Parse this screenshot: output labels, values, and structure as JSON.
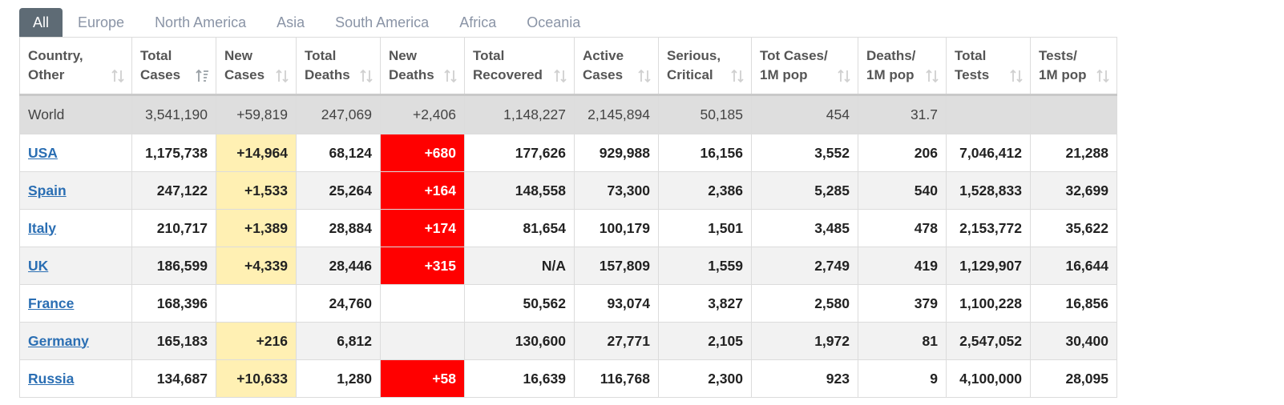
{
  "tabs": [
    "All",
    "Europe",
    "North America",
    "Asia",
    "South America",
    "Africa",
    "Oceania"
  ],
  "active_tab": "All",
  "colors": {
    "tab_active_bg": "#5e6b75",
    "link": "#2a6eb3",
    "new_cases_highlight": "#fff0b3",
    "new_deaths_highlight": "#ff0000",
    "world_row_bg": "#dedede"
  },
  "columns": [
    {
      "line1": "Country,",
      "line2": "Other"
    },
    {
      "line1": "Total",
      "line2": "Cases"
    },
    {
      "line1": "New",
      "line2": "Cases"
    },
    {
      "line1": "Total",
      "line2": "Deaths"
    },
    {
      "line1": "New",
      "line2": "Deaths"
    },
    {
      "line1": "Total",
      "line2": "Recovered"
    },
    {
      "line1": "Active",
      "line2": "Cases"
    },
    {
      "line1": "Serious,",
      "line2": "Critical"
    },
    {
      "line1": "Tot Cases/",
      "line2": "1M pop"
    },
    {
      "line1": "Deaths/",
      "line2": "1M pop"
    },
    {
      "line1": "Total",
      "line2": "Tests"
    },
    {
      "line1": "Tests/",
      "line2": "1M pop"
    }
  ],
  "world": [
    "World",
    "3,541,190",
    "+59,819",
    "247,069",
    "+2,406",
    "1,148,227",
    "2,145,894",
    "50,185",
    "454",
    "31.7",
    "",
    ""
  ],
  "rows": [
    [
      "USA",
      "1,175,738",
      "+14,964",
      "68,124",
      "+680",
      "177,626",
      "929,988",
      "16,156",
      "3,552",
      "206",
      "7,046,412",
      "21,288"
    ],
    [
      "Spain",
      "247,122",
      "+1,533",
      "25,264",
      "+164",
      "148,558",
      "73,300",
      "2,386",
      "5,285",
      "540",
      "1,528,833",
      "32,699"
    ],
    [
      "Italy",
      "210,717",
      "+1,389",
      "28,884",
      "+174",
      "81,654",
      "100,179",
      "1,501",
      "3,485",
      "478",
      "2,153,772",
      "35,622"
    ],
    [
      "UK",
      "186,599",
      "+4,339",
      "28,446",
      "+315",
      "N/A",
      "157,809",
      "1,559",
      "2,749",
      "419",
      "1,129,907",
      "16,644"
    ],
    [
      "France",
      "168,396",
      "",
      "24,760",
      "",
      "50,562",
      "93,074",
      "3,827",
      "2,580",
      "379",
      "1,100,228",
      "16,856"
    ],
    [
      "Germany",
      "165,183",
      "+216",
      "6,812",
      "",
      "130,600",
      "27,771",
      "2,105",
      "1,972",
      "81",
      "2,547,052",
      "30,400"
    ],
    [
      "Russia",
      "134,687",
      "+10,633",
      "1,280",
      "+58",
      "16,639",
      "116,768",
      "2,300",
      "923",
      "9",
      "4,100,000",
      "28,095"
    ]
  ]
}
